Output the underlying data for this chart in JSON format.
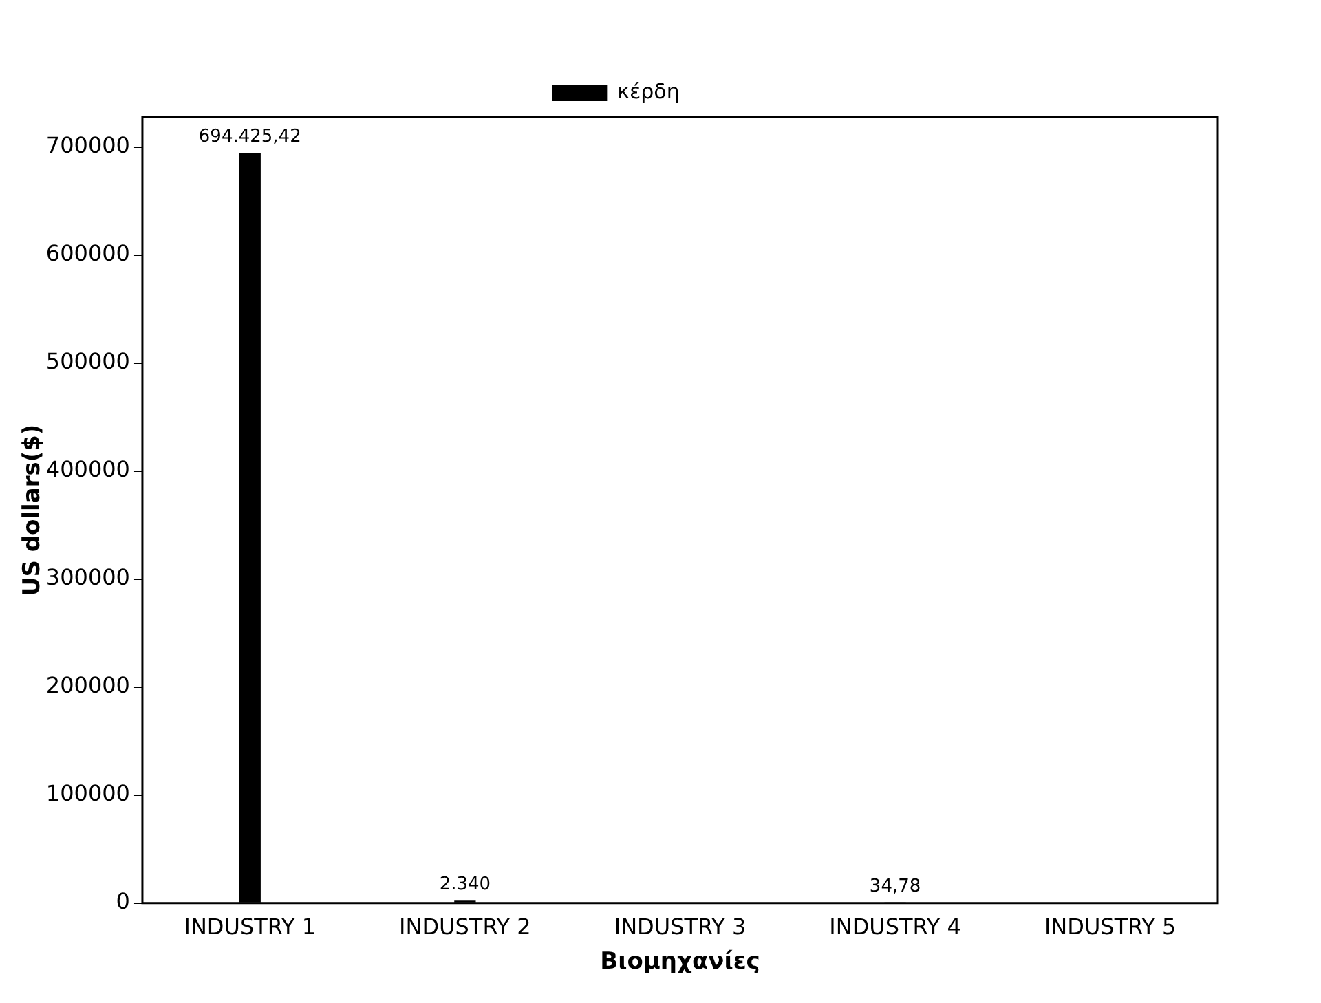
{
  "chart_data": {
    "type": "bar",
    "xlabel": "Βιομηχανίες",
    "ylabel": "US dollars($)",
    "categories": [
      "INDUSTRY 1",
      "INDUSTRY 2",
      "INDUSTRY 3",
      "INDUSTRY 4",
      "INDUSTRY 5"
    ],
    "series": [
      {
        "name": "κέρδη",
        "color": "#000000",
        "values": [
          694425.42,
          2340,
          null,
          34.78,
          null
        ],
        "value_labels": [
          "694.425,42",
          "2.340",
          null,
          "34,78",
          null
        ]
      }
    ],
    "ylim": [
      0,
      728000
    ],
    "yticks": [
      0,
      100000,
      200000,
      300000,
      400000,
      500000,
      600000,
      700000
    ],
    "grid": false,
    "legend": "top"
  }
}
